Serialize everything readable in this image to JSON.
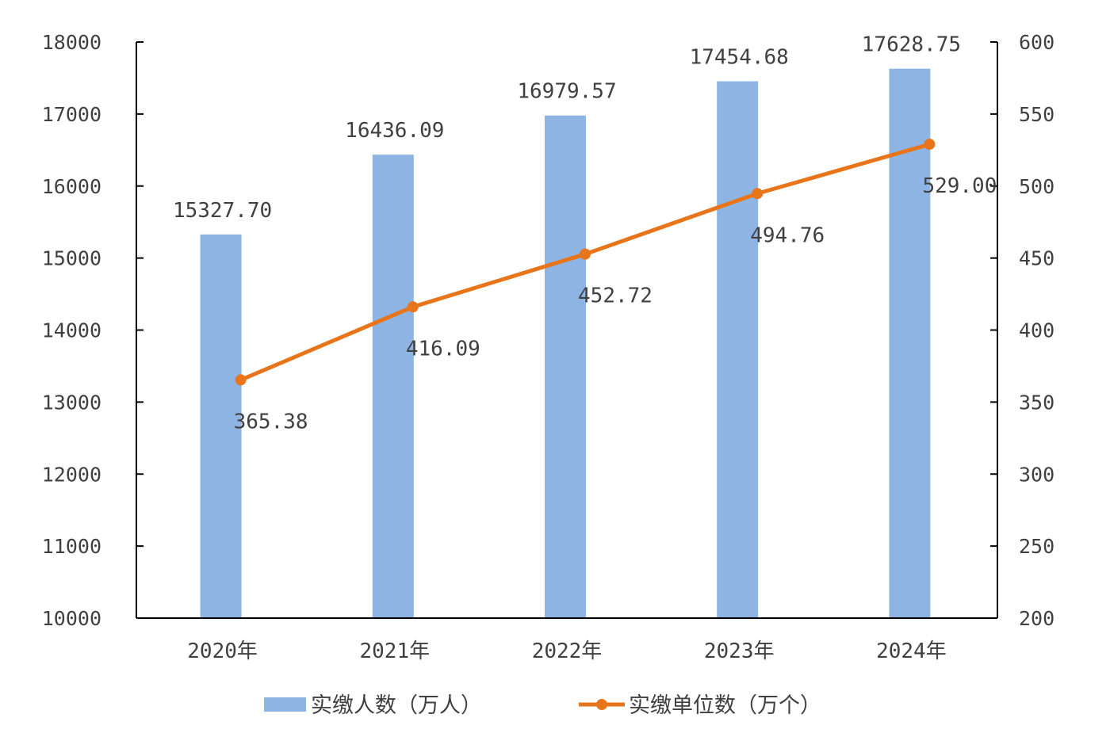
{
  "chart_data": {
    "type": "bar+line",
    "categories": [
      "2020年",
      "2021年",
      "2022年",
      "2023年",
      "2024年"
    ],
    "series": [
      {
        "name": "实缴人数（万人）",
        "type": "bar",
        "axis": "left",
        "values": [
          15327.7,
          16436.09,
          16979.57,
          17454.68,
          17628.75
        ],
        "labels": [
          "15327.70",
          "16436.09",
          "16979.57",
          "17454.68",
          "17628.75"
        ],
        "color": "#8EB4E3"
      },
      {
        "name": "实缴单位数（万个）",
        "type": "line",
        "axis": "right",
        "values": [
          365.38,
          416.09,
          452.72,
          494.76,
          529.0
        ],
        "labels": [
          "365.38",
          "416.09",
          "452.72",
          "494.76",
          "529.00"
        ],
        "color": "#E8751A"
      }
    ],
    "y_left": {
      "range": [
        10000,
        18000
      ],
      "ticks": [
        "10000",
        "11000",
        "12000",
        "13000",
        "14000",
        "15000",
        "16000",
        "17000",
        "18000"
      ]
    },
    "y_right": {
      "range": [
        200,
        600
      ],
      "ticks": [
        "200",
        "250",
        "300",
        "350",
        "400",
        "450",
        "500",
        "550",
        "600"
      ]
    },
    "title": "",
    "xlabel": "",
    "ylabel": "",
    "grid": false,
    "legend": "bottom-center"
  }
}
